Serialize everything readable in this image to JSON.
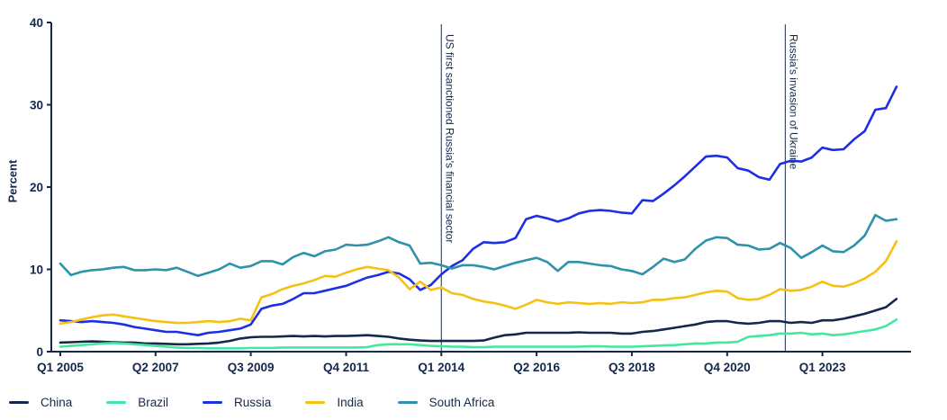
{
  "colors": {
    "axis": "#15284b",
    "text": "#15284b",
    "annotation_line": "#3f5068",
    "background": "#ffffff"
  },
  "legend": {
    "items": [
      {
        "label": "China"
      },
      {
        "label": "Brazil"
      },
      {
        "label": "Russia"
      },
      {
        "label": "India"
      },
      {
        "label": "South Africa"
      }
    ]
  },
  "chart_data": {
    "type": "line",
    "title": "",
    "xlabel": "",
    "ylabel": "Percent",
    "ylim": [
      0,
      40
    ],
    "yticks": [
      0,
      10,
      20,
      30,
      40
    ],
    "grid": false,
    "legend_position": "bottom-left",
    "x_unit": "quarter",
    "x_start": "Q1 2005",
    "x_end": "Q4 2024",
    "xtick_labels": [
      "Q1 2005",
      "Q2 2007",
      "Q3 2009",
      "Q4 2011",
      "Q1 2014",
      "Q2 2016",
      "Q3 2018",
      "Q4 2020",
      "Q1 2023"
    ],
    "xtick_indices": [
      0,
      9,
      18,
      27,
      36,
      45,
      54,
      63,
      72
    ],
    "annotations": [
      {
        "label": "US first sanctioned Russia's financial sector",
        "x_quarter": "Q1 2014",
        "x_index": 36
      },
      {
        "label": "Russia's invasion of Ukraine",
        "x_quarter": "Q1 2022",
        "x_index": 68.5
      }
    ],
    "series": [
      {
        "name": "China",
        "color": "#15284b",
        "values": [
          1.1,
          1.15,
          1.2,
          1.25,
          1.2,
          1.15,
          1.1,
          1.1,
          1.0,
          1.0,
          0.95,
          0.9,
          0.9,
          0.95,
          1.0,
          1.1,
          1.3,
          1.6,
          1.75,
          1.8,
          1.8,
          1.85,
          1.9,
          1.85,
          1.9,
          1.85,
          1.9,
          1.9,
          1.95,
          2.0,
          1.9,
          1.8,
          1.6,
          1.45,
          1.35,
          1.3,
          1.3,
          1.3,
          1.3,
          1.3,
          1.35,
          1.7,
          2.0,
          2.1,
          2.3,
          2.3,
          2.3,
          2.3,
          2.3,
          2.35,
          2.3,
          2.3,
          2.3,
          2.2,
          2.2,
          2.4,
          2.5,
          2.7,
          2.9,
          3.1,
          3.3,
          3.6,
          3.7,
          3.7,
          3.5,
          3.4,
          3.5,
          3.7,
          3.7,
          3.5,
          3.6,
          3.5,
          3.8,
          3.8,
          4.0,
          4.3,
          4.6,
          5.0,
          5.4,
          6.4
        ]
      },
      {
        "name": "Brazil",
        "color": "#43e79f",
        "values": [
          0.6,
          0.7,
          0.8,
          0.9,
          1.0,
          1.05,
          1.0,
          0.9,
          0.8,
          0.7,
          0.6,
          0.5,
          0.45,
          0.45,
          0.4,
          0.4,
          0.4,
          0.4,
          0.45,
          0.45,
          0.45,
          0.5,
          0.5,
          0.5,
          0.5,
          0.5,
          0.5,
          0.5,
          0.5,
          0.55,
          0.8,
          0.9,
          0.9,
          0.9,
          0.8,
          0.7,
          0.65,
          0.6,
          0.6,
          0.55,
          0.55,
          0.6,
          0.6,
          0.6,
          0.6,
          0.6,
          0.6,
          0.6,
          0.6,
          0.6,
          0.65,
          0.65,
          0.6,
          0.6,
          0.6,
          0.65,
          0.7,
          0.75,
          0.8,
          0.9,
          1.0,
          1.0,
          1.1,
          1.1,
          1.2,
          1.8,
          1.9,
          2.0,
          2.2,
          2.2,
          2.3,
          2.1,
          2.2,
          2.0,
          2.1,
          2.3,
          2.5,
          2.7,
          3.1,
          3.9
        ]
      },
      {
        "name": "Russia",
        "color": "#1e2ee6",
        "values": [
          3.8,
          3.7,
          3.6,
          3.7,
          3.6,
          3.5,
          3.3,
          3.0,
          2.8,
          2.6,
          2.4,
          2.4,
          2.2,
          2.0,
          2.3,
          2.4,
          2.6,
          2.8,
          3.3,
          5.2,
          5.6,
          5.8,
          6.4,
          7.1,
          7.1,
          7.4,
          7.7,
          8.0,
          8.5,
          9.0,
          9.3,
          9.7,
          9.5,
          8.8,
          7.5,
          8.1,
          9.4,
          10.4,
          11.1,
          12.5,
          13.3,
          13.2,
          13.3,
          13.8,
          16.1,
          16.5,
          16.2,
          15.8,
          16.2,
          16.8,
          17.1,
          17.2,
          17.1,
          16.9,
          16.8,
          18.4,
          18.3,
          19.2,
          20.2,
          21.3,
          22.5,
          23.7,
          23.8,
          23.6,
          22.3,
          22.0,
          21.2,
          20.9,
          22.8,
          23.2,
          23.1,
          23.6,
          24.8,
          24.5,
          24.6,
          25.8,
          26.8,
          29.4,
          29.6,
          32.2
        ]
      },
      {
        "name": "India",
        "color": "#f5c113",
        "values": [
          3.4,
          3.6,
          3.9,
          4.2,
          4.4,
          4.5,
          4.3,
          4.1,
          3.9,
          3.7,
          3.6,
          3.5,
          3.5,
          3.6,
          3.7,
          3.6,
          3.7,
          4.0,
          3.8,
          6.6,
          7.0,
          7.6,
          8.0,
          8.3,
          8.7,
          9.2,
          9.1,
          9.6,
          10.0,
          10.3,
          10.1,
          9.9,
          9.0,
          7.6,
          8.5,
          7.5,
          7.8,
          7.1,
          6.9,
          6.4,
          6.1,
          5.9,
          5.6,
          5.2,
          5.7,
          6.3,
          6.0,
          5.8,
          6.0,
          5.9,
          5.8,
          5.9,
          5.8,
          6.0,
          5.9,
          6.0,
          6.3,
          6.3,
          6.5,
          6.6,
          6.9,
          7.2,
          7.4,
          7.3,
          6.5,
          6.3,
          6.4,
          6.9,
          7.6,
          7.4,
          7.5,
          7.9,
          8.5,
          8.0,
          7.9,
          8.3,
          8.9,
          9.7,
          11.0,
          13.4
        ]
      },
      {
        "name": "South Africa",
        "color": "#2e92ab",
        "values": [
          10.7,
          9.3,
          9.7,
          9.9,
          10.0,
          10.2,
          10.3,
          9.9,
          9.9,
          10.0,
          9.9,
          10.2,
          9.7,
          9.2,
          9.6,
          10.0,
          10.7,
          10.2,
          10.4,
          11.0,
          11.0,
          10.6,
          11.5,
          12.0,
          11.6,
          12.2,
          12.4,
          13.0,
          12.9,
          13.0,
          13.4,
          13.9,
          13.3,
          12.9,
          10.7,
          10.8,
          10.5,
          10.1,
          10.5,
          10.5,
          10.3,
          10.0,
          10.4,
          10.8,
          11.1,
          11.4,
          10.9,
          9.8,
          10.9,
          10.9,
          10.7,
          10.5,
          10.4,
          10.0,
          9.8,
          9.4,
          10.3,
          11.3,
          10.9,
          11.2,
          12.5,
          13.5,
          13.9,
          13.8,
          13.0,
          12.9,
          12.4,
          12.5,
          13.2,
          12.6,
          11.4,
          12.1,
          12.9,
          12.2,
          12.1,
          12.9,
          14.1,
          16.6,
          15.9,
          16.1
        ]
      }
    ]
  }
}
